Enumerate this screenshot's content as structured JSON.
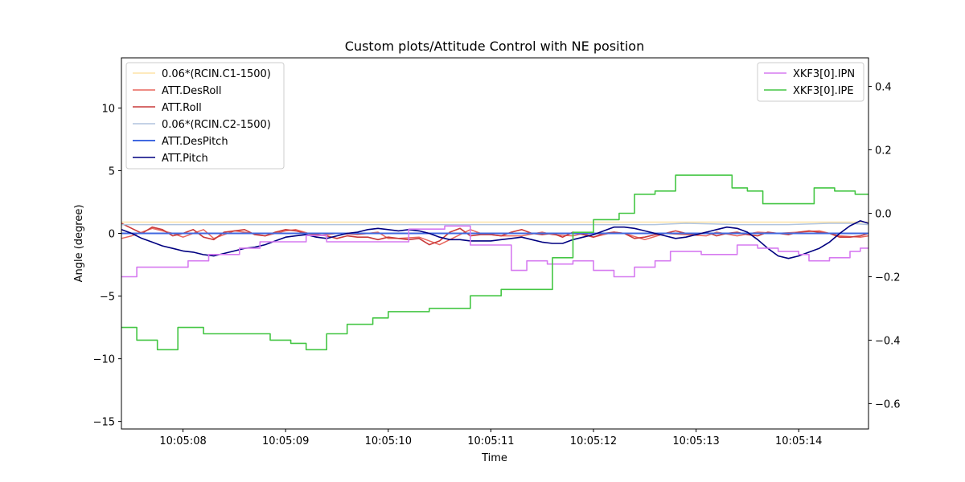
{
  "chart_data": {
    "type": "line",
    "title": "Custom plots/Attitude Control with NE position",
    "xlabel": "Time",
    "ylabel": "Angle (degree)",
    "x_range": [
      7.4,
      14.68
    ],
    "ylim": [
      -15.6,
      14.0
    ],
    "y2lim": [
      -0.68,
      0.49
    ],
    "xticks": [
      {
        "value": 8,
        "label": "10:05:08"
      },
      {
        "value": 9,
        "label": "10:05:09"
      },
      {
        "value": 10,
        "label": "10:05:10"
      },
      {
        "value": 11,
        "label": "10:05:11"
      },
      {
        "value": 12,
        "label": "10:05:12"
      },
      {
        "value": 13,
        "label": "10:05:13"
      },
      {
        "value": 14,
        "label": "10:05:14"
      }
    ],
    "yticks": [
      {
        "value": -15,
        "label": "−15"
      },
      {
        "value": -10,
        "label": "−10"
      },
      {
        "value": -5,
        "label": "−5"
      },
      {
        "value": 0,
        "label": "0"
      },
      {
        "value": 5,
        "label": "5"
      },
      {
        "value": 10,
        "label": "10"
      }
    ],
    "y2ticks": [
      {
        "value": -0.6,
        "label": "−0.6"
      },
      {
        "value": -0.4,
        "label": "−0.4"
      },
      {
        "value": -0.2,
        "label": "−0.2"
      },
      {
        "value": 0.0,
        "label": "0.0"
      },
      {
        "value": 0.2,
        "label": "0.2"
      },
      {
        "value": 0.4,
        "label": "0.4"
      }
    ],
    "legend_left_placement": "top-left",
    "legend_right_placement": "top-right",
    "grid": false,
    "series": [
      {
        "name": "0.06*(RCIN.C1-1500)",
        "axis": "left",
        "color": "#fde3a7",
        "width": 1.5,
        "shape": "linear",
        "x": [
          7.4,
          14.68
        ],
        "y": [
          0.9,
          0.9
        ]
      },
      {
        "name": "ATT.DesRoll",
        "axis": "left",
        "color": "#e8665d",
        "width": 1.5,
        "shape": "linear",
        "x": [
          7.4,
          7.5,
          7.7,
          7.9,
          8.0,
          8.2,
          8.3,
          8.5,
          8.6,
          8.8,
          9.0,
          9.1,
          9.3,
          9.5,
          9.7,
          9.9,
          10.0,
          10.1,
          10.3,
          10.5,
          10.6,
          10.8,
          10.9,
          11.1,
          11.3,
          11.5,
          11.6,
          11.8,
          11.9,
          12.0,
          12.2,
          12.3,
          12.5,
          12.7,
          12.9,
          13.1,
          13.2,
          13.4,
          13.6,
          13.8,
          14.0,
          14.2,
          14.4,
          14.6,
          14.68
        ],
        "y": [
          -0.4,
          -0.2,
          0.4,
          0.0,
          -0.3,
          0.3,
          -0.4,
          0.2,
          0.1,
          -0.2,
          0.2,
          0.3,
          -0.2,
          0.0,
          -0.1,
          0.1,
          -0.4,
          -0.4,
          -0.3,
          -0.9,
          -0.5,
          0.3,
          0.0,
          -0.2,
          -0.2,
          0.1,
          -0.1,
          -0.2,
          0.0,
          -0.3,
          0.1,
          0.0,
          -0.5,
          0.0,
          -0.1,
          -0.2,
          0.1,
          -0.2,
          0.1,
          0.0,
          0.1,
          0.2,
          -0.2,
          -0.3,
          -0.2
        ]
      },
      {
        "name": "ATT.Roll",
        "axis": "left",
        "color": "#c93a3a",
        "width": 1.6,
        "shape": "linear",
        "x": [
          7.4,
          7.5,
          7.6,
          7.7,
          7.8,
          7.9,
          8.0,
          8.1,
          8.2,
          8.3,
          8.4,
          8.5,
          8.6,
          8.7,
          8.8,
          8.9,
          9.0,
          9.1,
          9.2,
          9.3,
          9.4,
          9.5,
          9.6,
          9.7,
          9.8,
          9.9,
          10.0,
          10.1,
          10.2,
          10.3,
          10.4,
          10.5,
          10.6,
          10.7,
          10.8,
          10.9,
          11.0,
          11.1,
          11.2,
          11.3,
          11.4,
          11.5,
          11.6,
          11.7,
          11.8,
          11.9,
          12.0,
          12.1,
          12.2,
          12.3,
          12.4,
          12.5,
          12.6,
          12.7,
          12.8,
          12.9,
          13.0,
          13.1,
          13.2,
          13.3,
          13.4,
          13.5,
          13.6,
          13.7,
          13.8,
          13.9,
          14.0,
          14.1,
          14.2,
          14.3,
          14.4,
          14.5,
          14.6,
          14.68
        ],
        "y": [
          0.8,
          0.4,
          0.0,
          0.5,
          0.3,
          -0.2,
          0.0,
          0.3,
          -0.3,
          -0.5,
          0.1,
          0.2,
          0.3,
          -0.1,
          -0.2,
          0.1,
          0.3,
          0.2,
          0.0,
          -0.1,
          -0.2,
          -0.4,
          -0.2,
          -0.3,
          -0.3,
          -0.5,
          -0.3,
          -0.4,
          -0.5,
          -0.4,
          -0.9,
          -0.6,
          0.1,
          0.4,
          -0.2,
          -0.1,
          -0.1,
          -0.2,
          0.1,
          0.3,
          0.0,
          -0.1,
          0.0,
          -0.3,
          0.1,
          -0.1,
          -0.3,
          0.0,
          0.1,
          0.0,
          -0.4,
          -0.3,
          -0.1,
          0.0,
          0.2,
          0.0,
          -0.1,
          0.1,
          -0.2,
          0.0,
          0.1,
          -0.1,
          -0.2,
          0.1,
          0.0,
          -0.1,
          0.1,
          0.2,
          0.1,
          0.0,
          -0.3,
          -0.3,
          -0.2,
          0.0
        ]
      },
      {
        "name": "0.06*(RCIN.C2-1500)",
        "axis": "left",
        "color": "#b0c4de",
        "width": 1.5,
        "shape": "linear",
        "x": [
          7.4,
          12.0,
          12.6,
          12.9,
          13.4,
          13.9,
          14.3,
          14.5,
          14.68
        ],
        "y": [
          0.7,
          0.7,
          0.7,
          0.8,
          0.7,
          0.7,
          0.8,
          0.8,
          0.7
        ]
      },
      {
        "name": "ATT.DesPitch",
        "axis": "left",
        "color": "#4169e1",
        "width": 2.0,
        "shape": "linear",
        "x": [
          7.4,
          14.68
        ],
        "y": [
          0.0,
          0.0
        ]
      },
      {
        "name": "ATT.Pitch",
        "axis": "left",
        "color": "#000080",
        "width": 1.6,
        "shape": "linear",
        "x": [
          7.4,
          7.5,
          7.6,
          7.7,
          7.8,
          7.9,
          8.0,
          8.1,
          8.2,
          8.3,
          8.4,
          8.5,
          8.6,
          8.7,
          8.8,
          8.9,
          9.0,
          9.1,
          9.2,
          9.3,
          9.4,
          9.5,
          9.6,
          9.7,
          9.8,
          9.9,
          10.0,
          10.1,
          10.2,
          10.3,
          10.4,
          10.5,
          10.6,
          10.7,
          10.8,
          10.9,
          11.0,
          11.1,
          11.2,
          11.3,
          11.4,
          11.5,
          11.6,
          11.7,
          11.8,
          11.9,
          12.0,
          12.1,
          12.2,
          12.3,
          12.4,
          12.5,
          12.6,
          12.7,
          12.8,
          12.9,
          13.0,
          13.1,
          13.2,
          13.3,
          13.4,
          13.5,
          13.6,
          13.7,
          13.8,
          13.9,
          14.0,
          14.1,
          14.2,
          14.3,
          14.4,
          14.5,
          14.6,
          14.68
        ],
        "y": [
          0.3,
          0.0,
          -0.4,
          -0.7,
          -1.0,
          -1.2,
          -1.4,
          -1.5,
          -1.7,
          -1.8,
          -1.6,
          -1.4,
          -1.2,
          -1.1,
          -0.9,
          -0.6,
          -0.3,
          -0.2,
          -0.1,
          -0.3,
          -0.4,
          -0.2,
          0.0,
          0.1,
          0.3,
          0.4,
          0.3,
          0.2,
          0.3,
          0.2,
          0.0,
          -0.3,
          -0.5,
          -0.5,
          -0.6,
          -0.6,
          -0.6,
          -0.5,
          -0.4,
          -0.3,
          -0.5,
          -0.7,
          -0.8,
          -0.8,
          -0.5,
          -0.3,
          -0.1,
          0.2,
          0.5,
          0.5,
          0.4,
          0.2,
          0.0,
          -0.2,
          -0.4,
          -0.3,
          -0.1,
          0.1,
          0.3,
          0.5,
          0.4,
          0.1,
          -0.5,
          -1.2,
          -1.8,
          -2.0,
          -1.8,
          -1.5,
          -1.2,
          -0.7,
          0.0,
          0.6,
          1.0,
          0.8
        ]
      },
      {
        "name": "XKF3[0].IPN",
        "axis": "right",
        "color": "#d67af0",
        "width": 1.6,
        "shape": "step",
        "x": [
          7.4,
          7.55,
          7.65,
          8.05,
          8.25,
          8.55,
          8.75,
          9.2,
          9.4,
          9.75,
          10.2,
          10.55,
          10.8,
          11.2,
          11.35,
          11.55,
          11.65,
          11.8,
          12.0,
          12.2,
          12.4,
          12.6,
          12.75,
          13.05,
          13.4,
          13.6,
          13.8,
          14.0,
          14.1,
          14.3,
          14.5,
          14.6,
          14.68
        ],
        "y": [
          -0.2,
          -0.17,
          -0.17,
          -0.15,
          -0.13,
          -0.11,
          -0.09,
          -0.07,
          -0.09,
          -0.09,
          -0.05,
          -0.04,
          -0.1,
          -0.18,
          -0.15,
          -0.16,
          -0.16,
          -0.15,
          -0.18,
          -0.2,
          -0.17,
          -0.15,
          -0.12,
          -0.13,
          -0.1,
          -0.11,
          -0.12,
          -0.13,
          -0.15,
          -0.14,
          -0.12,
          -0.11,
          -0.11
        ]
      },
      {
        "name": "XKF3[0].IPE",
        "axis": "right",
        "color": "#44c644",
        "width": 1.6,
        "shape": "step",
        "x": [
          7.4,
          7.55,
          7.75,
          7.95,
          8.2,
          8.5,
          8.85,
          9.05,
          9.2,
          9.4,
          9.6,
          9.85,
          10.0,
          10.4,
          10.8,
          11.1,
          11.4,
          11.6,
          11.8,
          12.0,
          12.25,
          12.4,
          12.6,
          12.8,
          13.1,
          13.35,
          13.5,
          13.65,
          13.8,
          14.15,
          14.35,
          14.55,
          14.68
        ],
        "y": [
          -0.36,
          -0.4,
          -0.43,
          -0.36,
          -0.38,
          -0.38,
          -0.4,
          -0.41,
          -0.43,
          -0.38,
          -0.35,
          -0.33,
          -0.31,
          -0.3,
          -0.26,
          -0.24,
          -0.24,
          -0.14,
          -0.06,
          -0.02,
          0.0,
          0.06,
          0.07,
          0.12,
          0.12,
          0.08,
          0.07,
          0.03,
          0.03,
          0.08,
          0.07,
          0.06,
          0.06
        ]
      }
    ]
  }
}
